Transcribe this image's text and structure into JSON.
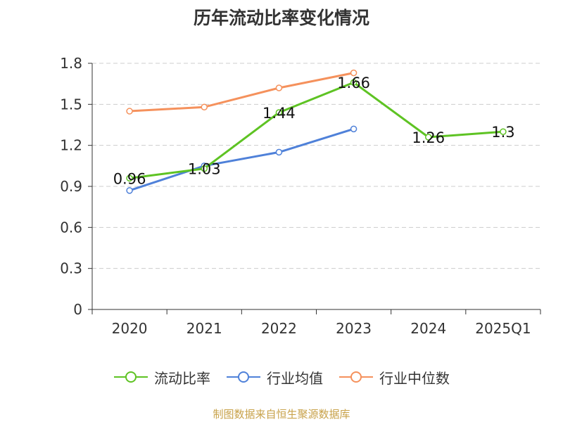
{
  "chart_data": {
    "type": "line",
    "title": "历年流动比率变化情况",
    "categories": [
      "2020",
      "2021",
      "2022",
      "2023",
      "2024",
      "2025Q1"
    ],
    "ylim": [
      0,
      1.8
    ],
    "yticks": [
      "0",
      "0.3",
      "0.6",
      "0.9",
      "1.2",
      "1.5",
      "1.8"
    ],
    "grid": true,
    "legend_position": "bottom",
    "series": [
      {
        "name": "流动比率",
        "color": "#5ec323",
        "values": [
          0.96,
          1.03,
          1.44,
          1.66,
          1.26,
          1.3
        ],
        "labels": [
          "0.96",
          "1.03",
          "1.44",
          "1.66",
          "1.26",
          "1.3"
        ]
      },
      {
        "name": "行业均值",
        "color": "#4f81d9",
        "values": [
          0.87,
          1.05,
          1.15,
          1.32,
          null,
          null
        ]
      },
      {
        "name": "行业中位数",
        "color": "#f5915c",
        "values": [
          1.45,
          1.48,
          1.62,
          1.73,
          null,
          null
        ]
      }
    ],
    "source": "制图数据来自恒生聚源数据库"
  }
}
